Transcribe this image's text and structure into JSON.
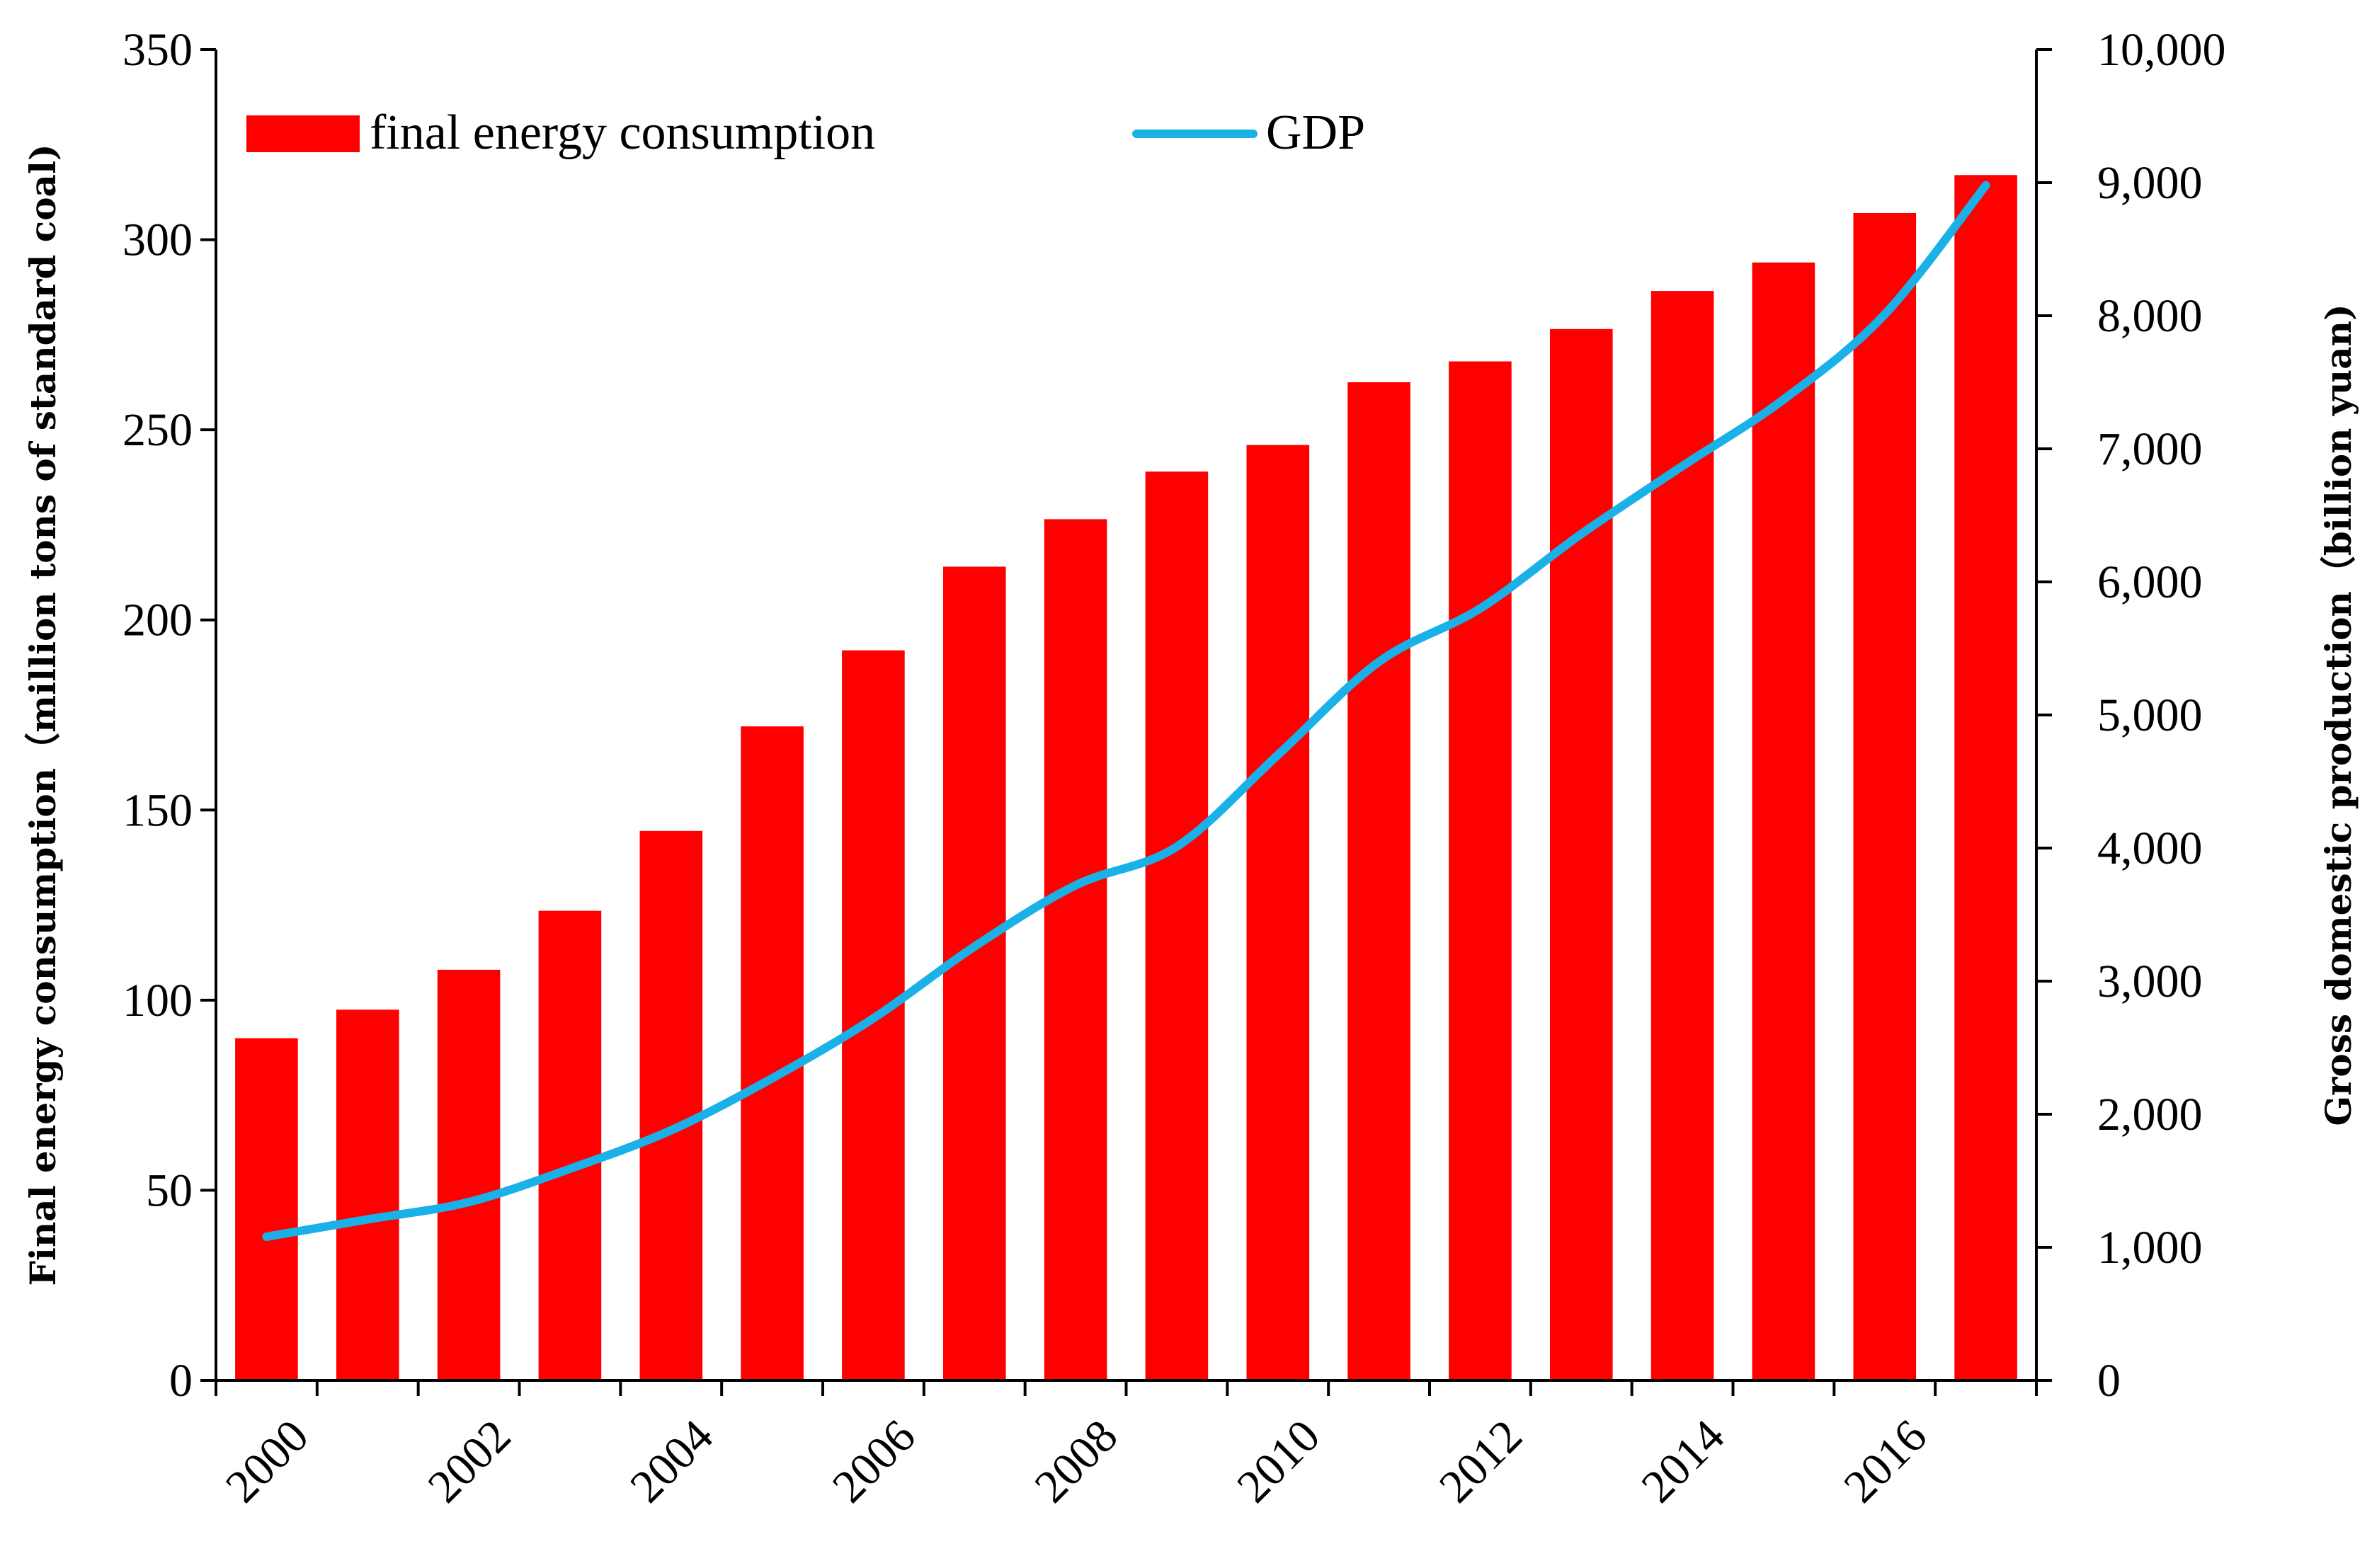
{
  "chart_data": {
    "type": "bar",
    "title": "",
    "categories": [
      "2000",
      "2001",
      "2002",
      "2003",
      "2004",
      "2005",
      "2006",
      "2007",
      "2008",
      "2009",
      "2010",
      "2011",
      "2012",
      "2013",
      "2014",
      "2015",
      "2016",
      "2017"
    ],
    "x_tick_labels": [
      "2000",
      "2002",
      "2004",
      "2006",
      "2008",
      "2010",
      "2012",
      "2014",
      "2016"
    ],
    "series": [
      {
        "name": "final energy consumption",
        "type": "bar",
        "axis": "left",
        "color": "#ff0000",
        "values": [
          90,
          97.5,
          108,
          123.5,
          144.5,
          172,
          192,
          214,
          226.5,
          239,
          246,
          262.5,
          268,
          276.5,
          286.5,
          294,
          307,
          317
        ]
      },
      {
        "name": "GDP",
        "type": "line",
        "axis": "right",
        "color": "#1ab0e8",
        "values": [
          1080,
          1210,
          1340,
          1590,
          1880,
          2270,
          2720,
          3260,
          3720,
          4010,
          4700,
          5400,
          5800,
          6360,
          6870,
          7370,
          8010,
          8980
        ]
      }
    ],
    "y_left": {
      "label": "Final energy consumption（million tons of standard coal)",
      "range": [
        0,
        350
      ],
      "ticks": [
        0,
        50,
        100,
        150,
        200,
        250,
        300,
        350
      ],
      "tick_labels": [
        "0",
        "50",
        "100",
        "150",
        "200",
        "250",
        "300",
        "350"
      ]
    },
    "y_right": {
      "label": "Gross domestic production（billion yuan)",
      "range": [
        0,
        10000
      ],
      "ticks": [
        0,
        1000,
        2000,
        3000,
        4000,
        5000,
        6000,
        7000,
        8000,
        9000,
        10000
      ],
      "tick_labels": [
        "0",
        "1,000",
        "2,000",
        "3,000",
        "4,000",
        "5,000",
        "6,000",
        "7,000",
        "8,000",
        "9,000",
        "10,000"
      ]
    },
    "legend": {
      "position": "top-left",
      "entries": [
        "final energy consumption",
        "GDP"
      ]
    },
    "grid": false
  }
}
